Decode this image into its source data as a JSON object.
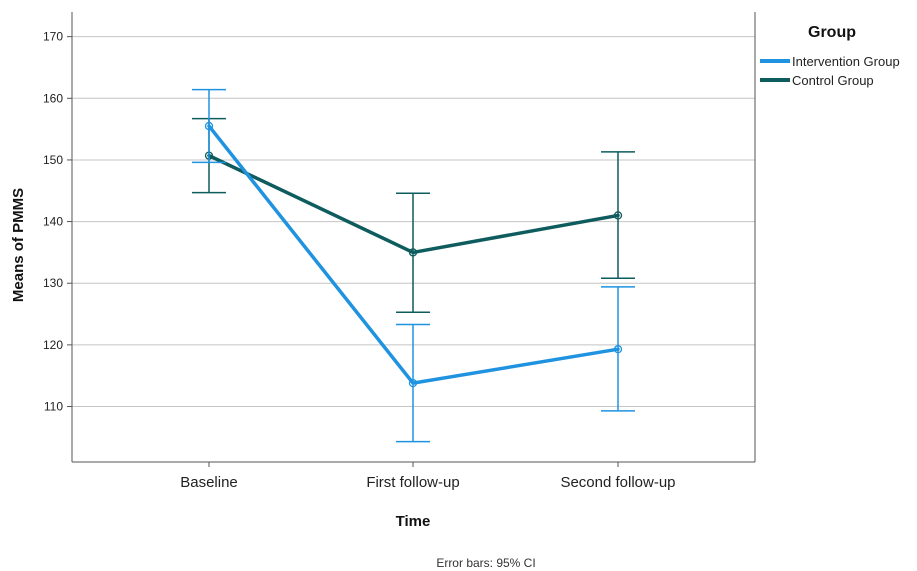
{
  "chart_data": {
    "type": "line",
    "xlabel": "Time",
    "ylabel": "Means of PMMS",
    "categories": [
      "Baseline",
      "First follow-up",
      "Second follow-up"
    ],
    "ylim": [
      101,
      174
    ],
    "yticks": [
      110,
      120,
      130,
      140,
      150,
      160,
      170
    ],
    "grid": "horizontal",
    "legend": {
      "title": "Group",
      "placement": "top-right, outside plot"
    },
    "series": [
      {
        "name": "Intervention Group",
        "color": "#1f93e0",
        "values": [
          155.5,
          113.8,
          119.3
        ],
        "ci_lower": [
          149.6,
          104.3,
          109.3
        ],
        "ci_upper": [
          161.4,
          123.3,
          129.4
        ]
      },
      {
        "name": "Control Group",
        "color": "#0e5c5e",
        "values": [
          150.7,
          135.0,
          141.0
        ],
        "ci_lower": [
          144.7,
          125.3,
          130.8
        ],
        "ci_upper": [
          156.7,
          144.6,
          151.3
        ]
      }
    ],
    "footnote": "Error bars: 95% CI"
  }
}
